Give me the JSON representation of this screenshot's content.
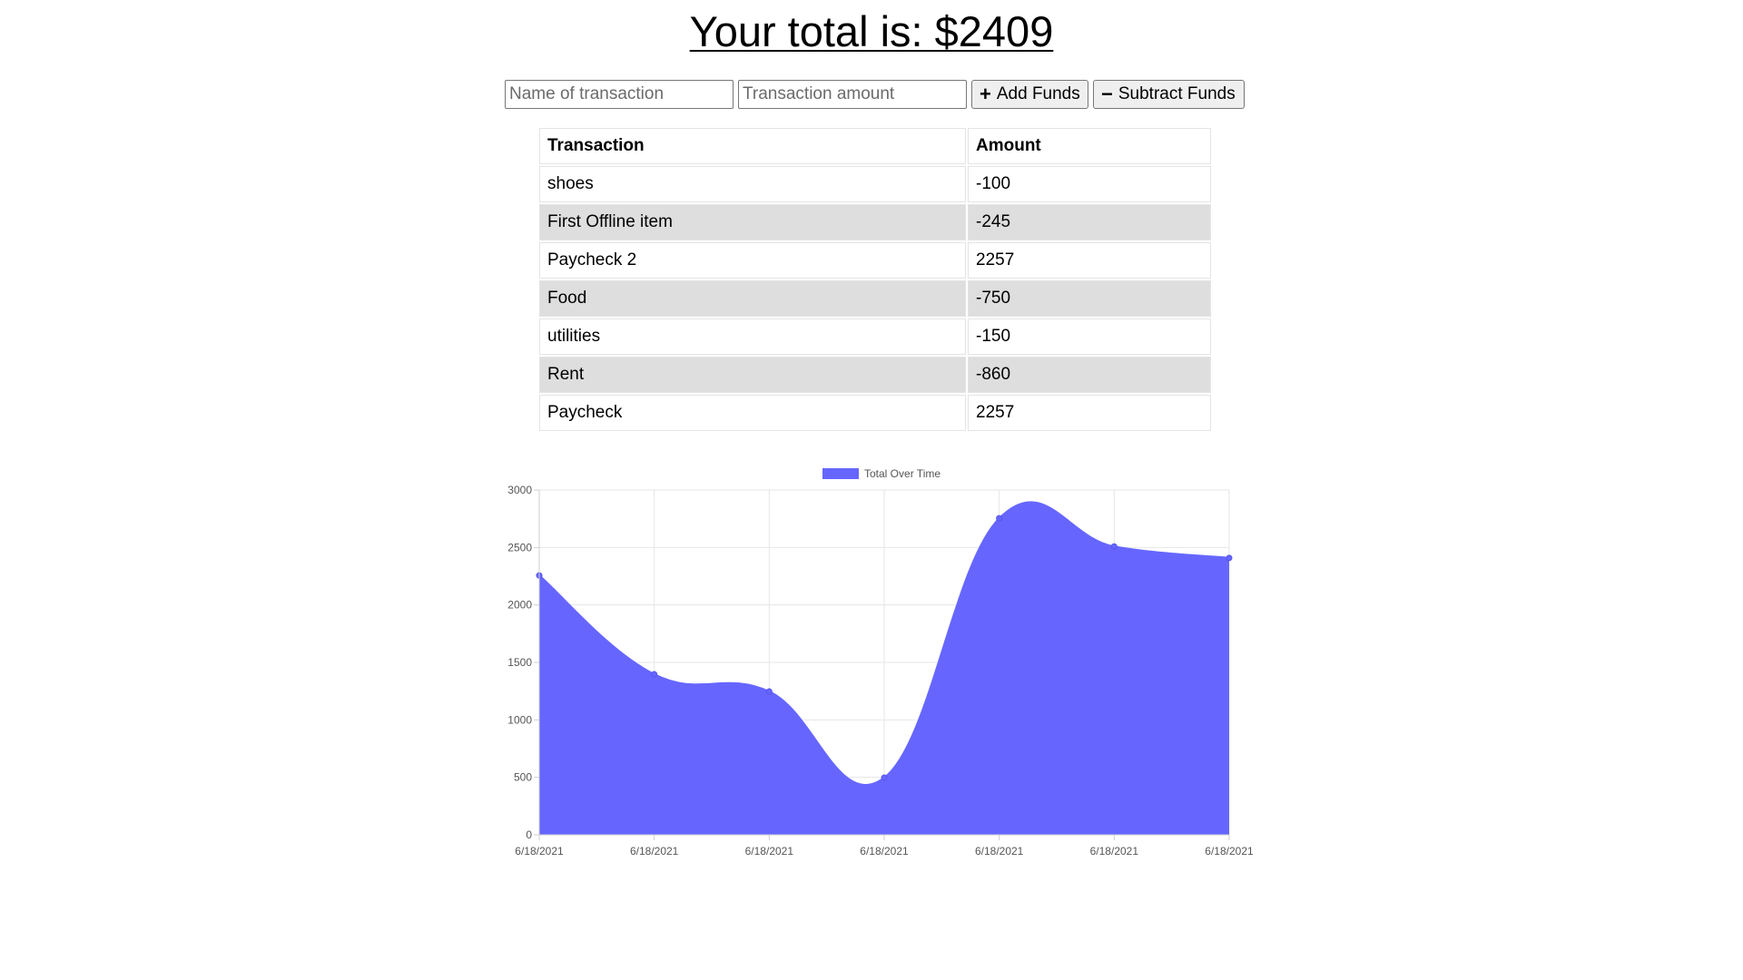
{
  "header": {
    "total_label": "Your total is: $2409"
  },
  "form": {
    "name_placeholder": "Name of transaction",
    "amount_placeholder": "Transaction amount",
    "add_label": "Add Funds",
    "subtract_label": "Subtract Funds",
    "add_icon": "plus-icon",
    "subtract_icon": "minus-icon"
  },
  "table": {
    "headers": [
      "Transaction",
      "Amount"
    ],
    "rows": [
      {
        "name": "shoes",
        "amount": "-100"
      },
      {
        "name": "First Offline item",
        "amount": "-245"
      },
      {
        "name": "Paycheck 2",
        "amount": "2257"
      },
      {
        "name": "Food",
        "amount": "-750"
      },
      {
        "name": "utilities",
        "amount": "-150"
      },
      {
        "name": "Rent",
        "amount": "-860"
      },
      {
        "name": "Paycheck",
        "amount": "2257"
      }
    ]
  },
  "chart_data": {
    "type": "area",
    "x": [
      "6/18/2021",
      "6/18/2021",
      "6/18/2021",
      "6/18/2021",
      "6/18/2021",
      "6/18/2021",
      "6/18/2021"
    ],
    "series": [
      {
        "name": "Total Over Time",
        "values": [
          2257,
          1397,
          1247,
          497,
          2754,
          2509,
          2409
        ],
        "color": "#6666ff"
      }
    ],
    "yticks": [
      0,
      500,
      1000,
      1500,
      2000,
      2500,
      3000
    ],
    "ylim": [
      0,
      3000
    ],
    "grid": true,
    "legend": "top"
  }
}
